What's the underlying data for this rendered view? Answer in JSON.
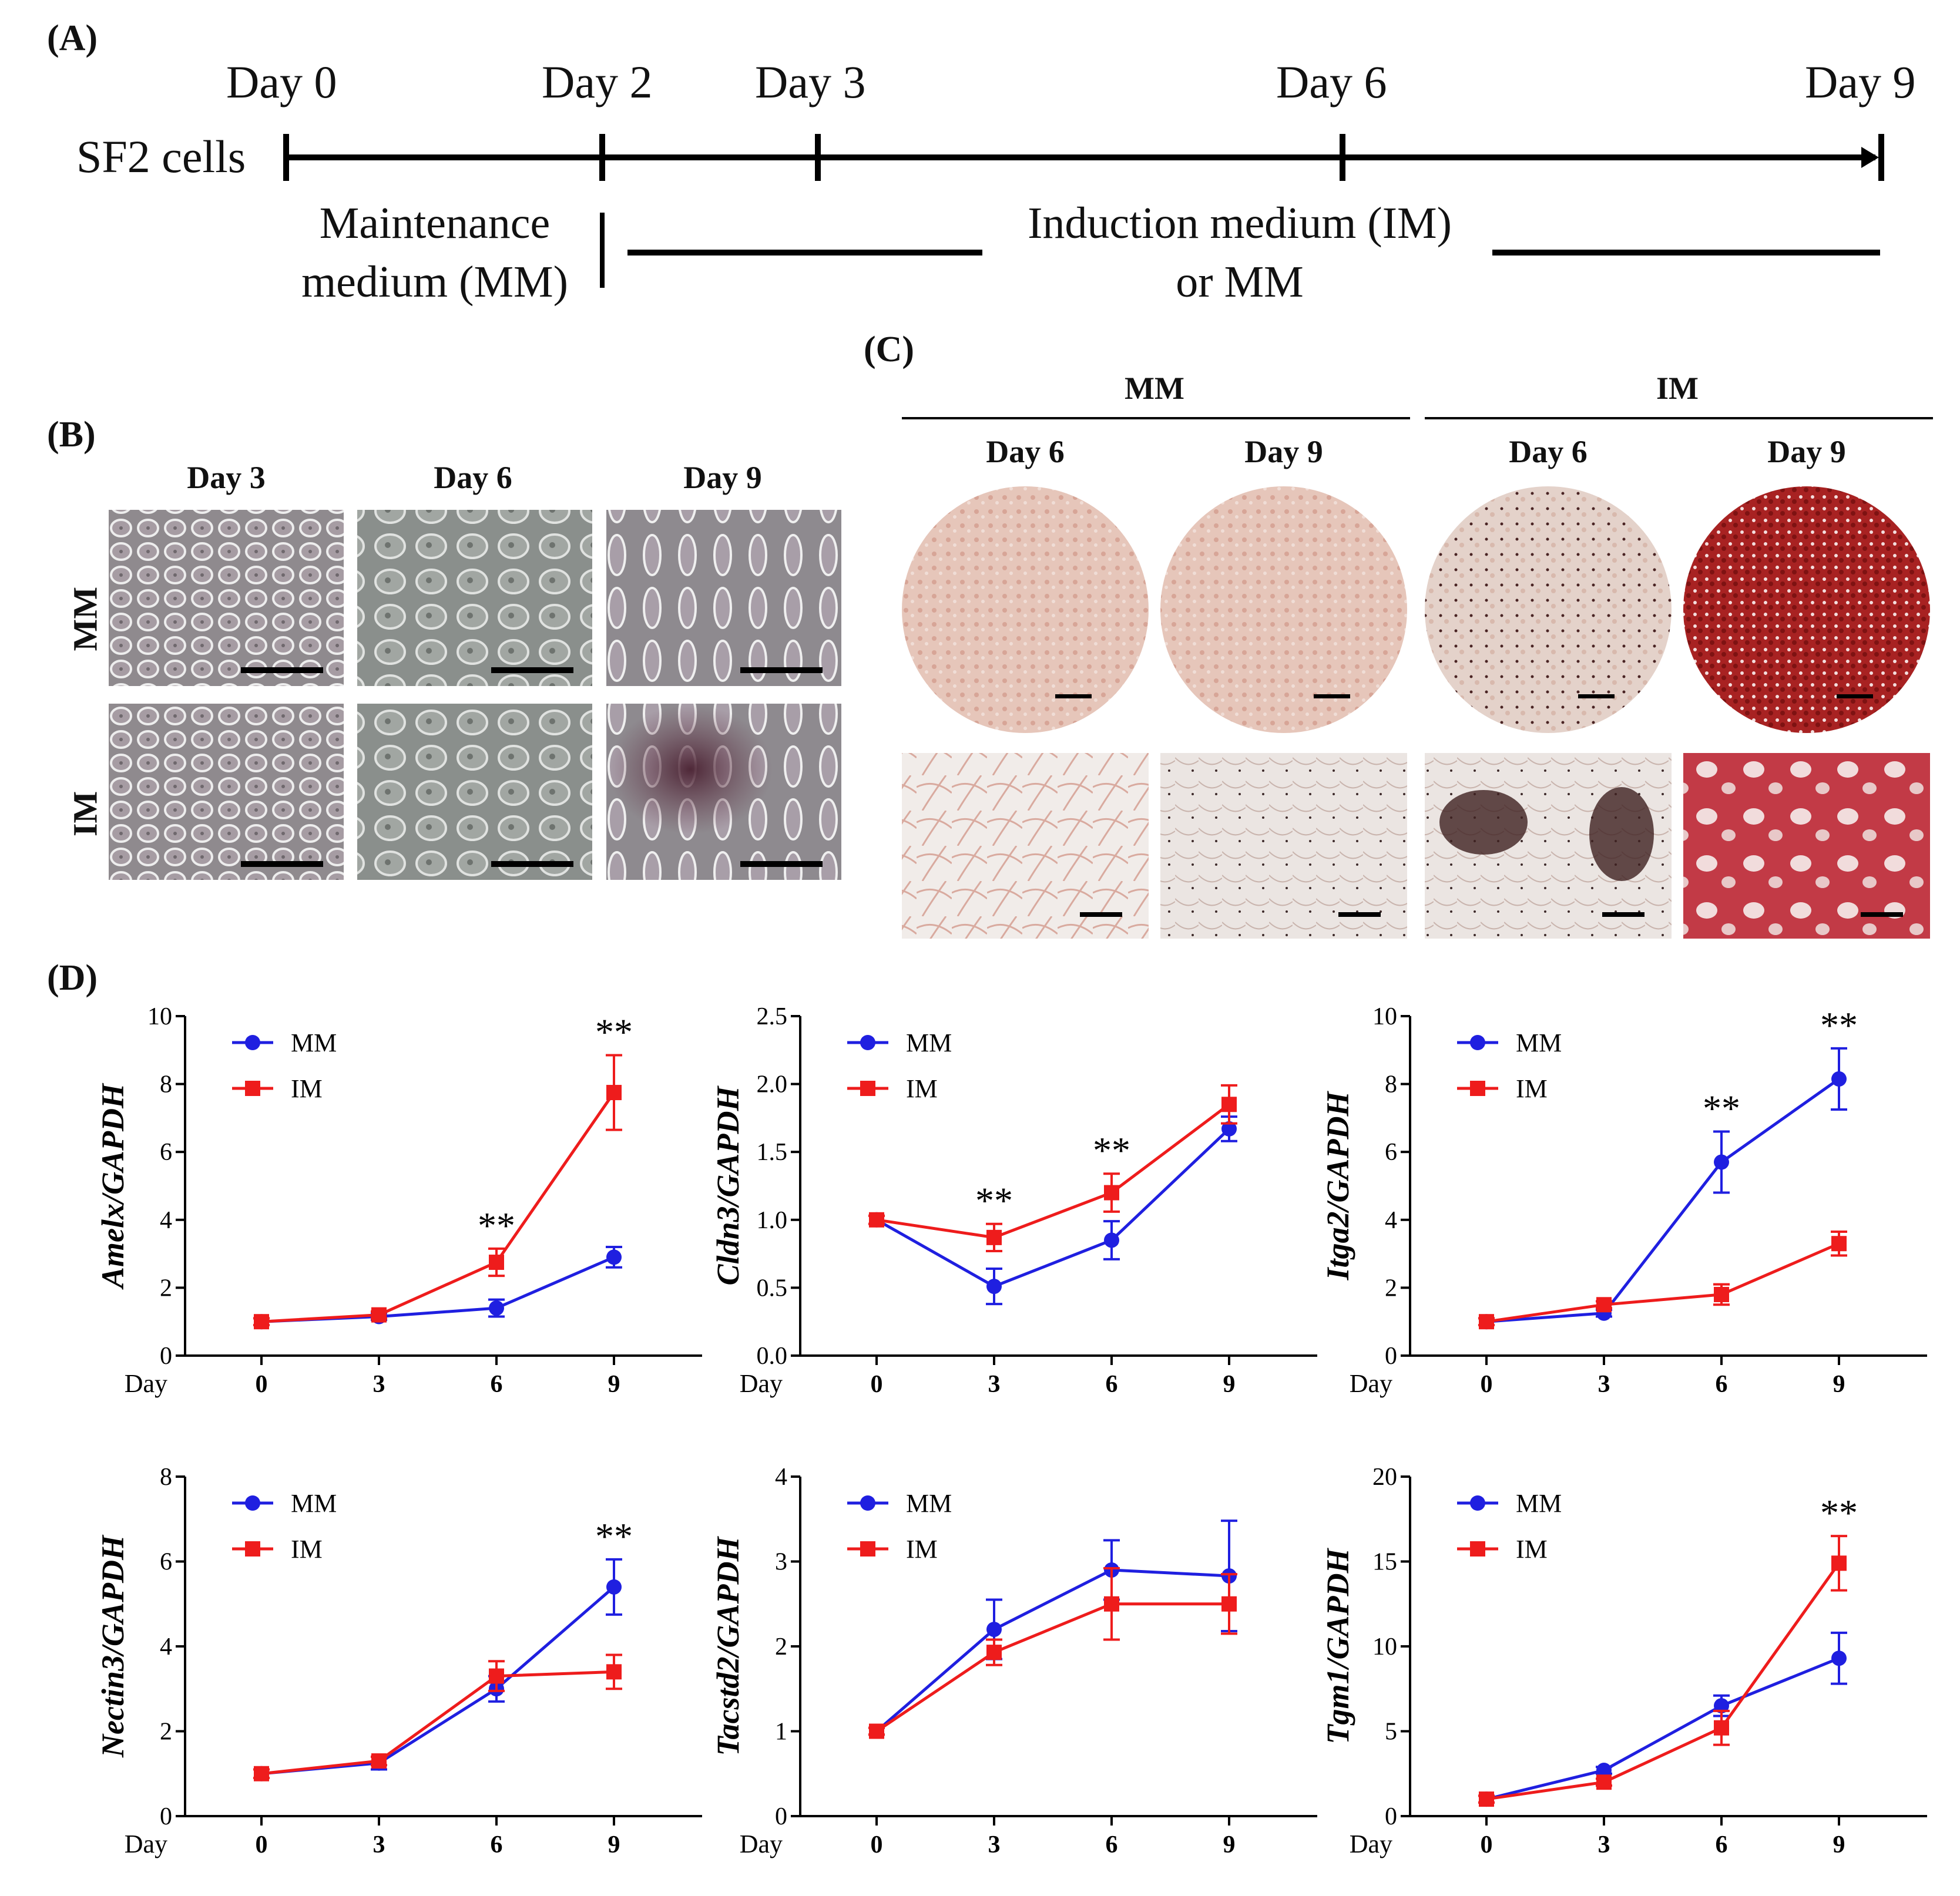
{
  "panel_a": {
    "label": "(A)",
    "cells_label": "SF2 cells",
    "days": [
      "Day 0",
      "Day 2",
      "Day 3",
      "Day 6",
      "Day 9"
    ],
    "maintenance_line1": "Maintenance",
    "maintenance_line2": "medium (MM)",
    "induction_line1": "Induction medium (IM)",
    "induction_line2": "or MM"
  },
  "panel_b": {
    "label": "(B)",
    "columns": [
      "Day 3",
      "Day 6",
      "Day 9"
    ],
    "rows": [
      "MM",
      "IM"
    ]
  },
  "panel_c": {
    "label": "(C)",
    "groups": [
      "MM",
      "IM"
    ],
    "columns": [
      "Day 6",
      "Day 9",
      "Day 6",
      "Day 9"
    ]
  },
  "panel_d": {
    "label": "(D)"
  },
  "colors": {
    "mm": "#1f1fe0",
    "im": "#ee1c1c",
    "stain": "#b52a2a"
  },
  "chart_data": [
    {
      "type": "line",
      "ylabel": "Amelx/GAPDH",
      "xlabel": "Day",
      "x": [
        0,
        3,
        6,
        9
      ],
      "ylim": [
        0,
        10
      ],
      "yticks": [
        0,
        2,
        4,
        6,
        8,
        10
      ],
      "ytick_labels": [
        "0",
        "2",
        "4",
        "6",
        "8",
        "10"
      ],
      "series": [
        {
          "name": "MM",
          "values": [
            1.0,
            1.15,
            1.4,
            2.9
          ],
          "errors": [
            0.1,
            0.1,
            0.25,
            0.3
          ]
        },
        {
          "name": "IM",
          "values": [
            1.0,
            1.2,
            2.75,
            7.75
          ],
          "errors": [
            0.1,
            0.1,
            0.4,
            1.1
          ]
        }
      ],
      "annotations": [
        {
          "x": 6,
          "text": "**"
        },
        {
          "x": 9,
          "text": "**"
        }
      ]
    },
    {
      "type": "line",
      "ylabel": "Cldn3/GAPDH",
      "xlabel": "Day",
      "x": [
        0,
        3,
        6,
        9
      ],
      "ylim": [
        0,
        2.5
      ],
      "yticks": [
        0,
        0.5,
        1.0,
        1.5,
        2.0,
        2.5
      ],
      "ytick_labels": [
        "0.0",
        "0.5",
        "1.0",
        "1.5",
        "2.0",
        "2.5"
      ],
      "series": [
        {
          "name": "MM",
          "values": [
            1.0,
            0.51,
            0.85,
            1.67
          ],
          "errors": [
            0.03,
            0.13,
            0.14,
            0.09
          ]
        },
        {
          "name": "IM",
          "values": [
            1.0,
            0.87,
            1.2,
            1.85
          ],
          "errors": [
            0.03,
            0.1,
            0.14,
            0.14
          ]
        }
      ],
      "annotations": [
        {
          "x": 3,
          "text": "**"
        },
        {
          "x": 6,
          "text": "**"
        }
      ]
    },
    {
      "type": "line",
      "ylabel": "Itga2/GAPDH",
      "xlabel": "Day",
      "x": [
        0,
        3,
        6,
        9
      ],
      "ylim": [
        0,
        10
      ],
      "yticks": [
        0,
        2,
        4,
        6,
        8,
        10
      ],
      "ytick_labels": [
        "0",
        "2",
        "4",
        "6",
        "8",
        "10"
      ],
      "series": [
        {
          "name": "MM",
          "values": [
            1.0,
            1.25,
            5.7,
            8.15
          ],
          "errors": [
            0.1,
            0.1,
            0.9,
            0.9
          ]
        },
        {
          "name": "IM",
          "values": [
            1.0,
            1.5,
            1.8,
            3.3
          ],
          "errors": [
            0.1,
            0.1,
            0.3,
            0.35
          ]
        }
      ],
      "annotations": [
        {
          "x": 6,
          "text": "**"
        },
        {
          "x": 9,
          "text": "**"
        }
      ]
    },
    {
      "type": "line",
      "ylabel": "Nectin3/GAPDH",
      "xlabel": "Day",
      "x": [
        0,
        3,
        6,
        9
      ],
      "ylim": [
        0,
        8
      ],
      "yticks": [
        0,
        2,
        4,
        6,
        8
      ],
      "ytick_labels": [
        "0",
        "2",
        "4",
        "6",
        "8"
      ],
      "series": [
        {
          "name": "MM",
          "values": [
            1.0,
            1.25,
            3.0,
            5.4
          ],
          "errors": [
            0.1,
            0.15,
            0.3,
            0.65
          ]
        },
        {
          "name": "IM",
          "values": [
            1.0,
            1.3,
            3.3,
            3.4
          ],
          "errors": [
            0.1,
            0.1,
            0.35,
            0.4
          ]
        }
      ],
      "annotations": [
        {
          "x": 9,
          "text": "**"
        }
      ]
    },
    {
      "type": "line",
      "ylabel": "Tacstd2/GAPDH",
      "xlabel": "Day",
      "x": [
        0,
        3,
        6,
        9
      ],
      "ylim": [
        0,
        4
      ],
      "yticks": [
        0,
        1,
        2,
        3,
        4
      ],
      "ytick_labels": [
        "0",
        "1",
        "2",
        "3",
        "4"
      ],
      "series": [
        {
          "name": "MM",
          "values": [
            1.0,
            2.2,
            2.9,
            2.83
          ],
          "errors": [
            0.04,
            0.35,
            0.35,
            0.65
          ]
        },
        {
          "name": "IM",
          "values": [
            1.0,
            1.93,
            2.5,
            2.5
          ],
          "errors": [
            0.04,
            0.15,
            0.42,
            0.35
          ]
        }
      ],
      "annotations": []
    },
    {
      "type": "line",
      "ylabel": "Tgm1/GAPDH",
      "xlabel": "Day",
      "x": [
        0,
        3,
        6,
        9
      ],
      "ylim": [
        0,
        20
      ],
      "yticks": [
        0,
        5,
        10,
        15,
        20
      ],
      "ytick_labels": [
        "0",
        "5",
        "10",
        "15",
        "20"
      ],
      "series": [
        {
          "name": "MM",
          "values": [
            1.0,
            2.7,
            6.5,
            9.3
          ],
          "errors": [
            0.2,
            0.2,
            0.6,
            1.5
          ]
        },
        {
          "name": "IM",
          "values": [
            1.0,
            2.0,
            5.2,
            14.9
          ],
          "errors": [
            0.2,
            0.2,
            1.0,
            1.6
          ]
        }
      ],
      "annotations": [
        {
          "x": 9,
          "text": "**"
        }
      ]
    }
  ]
}
